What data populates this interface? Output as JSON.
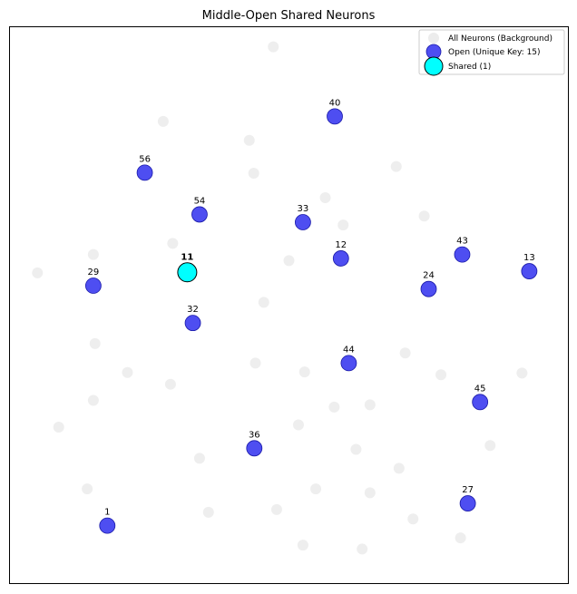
{
  "chart_data": {
    "type": "scatter",
    "title": "Middle-Open Shared Neurons",
    "xlabel": "",
    "ylabel": "",
    "xlim": [
      0,
      100
    ],
    "ylim": [
      0,
      100
    ],
    "grid": false,
    "axis_ticks": false,
    "legend_position": "top-right",
    "legend": [
      {
        "label": "All Neurons (Background)",
        "series": "background"
      },
      {
        "label": "Open (Unique Key: 15)",
        "series": "open"
      },
      {
        "label": "Shared (1)",
        "series": "shared"
      }
    ],
    "series": [
      {
        "name": "All Neurons (Background)",
        "id": "background",
        "color": "#d9d9d9",
        "points": [
          [
            47.2,
            96.4
          ],
          [
            27.5,
            83.0
          ],
          [
            42.9,
            79.6
          ],
          [
            43.7,
            73.7
          ],
          [
            69.2,
            74.9
          ],
          [
            56.5,
            69.3
          ],
          [
            59.7,
            64.4
          ],
          [
            74.2,
            66.0
          ],
          [
            29.2,
            61.1
          ],
          [
            15.0,
            59.1
          ],
          [
            50.0,
            58.0
          ],
          [
            5.0,
            55.8
          ],
          [
            45.5,
            50.5
          ],
          [
            15.3,
            43.1
          ],
          [
            44.0,
            39.6
          ],
          [
            21.1,
            37.9
          ],
          [
            28.8,
            35.8
          ],
          [
            52.8,
            38.0
          ],
          [
            70.8,
            41.4
          ],
          [
            77.2,
            37.5
          ],
          [
            91.7,
            37.8
          ],
          [
            15.0,
            32.9
          ],
          [
            58.1,
            31.7
          ],
          [
            64.5,
            32.1
          ],
          [
            51.7,
            28.5
          ],
          [
            8.8,
            28.1
          ],
          [
            34.0,
            22.5
          ],
          [
            62.0,
            24.1
          ],
          [
            86.0,
            24.8
          ],
          [
            69.7,
            20.7
          ],
          [
            13.9,
            17.0
          ],
          [
            54.8,
            17.0
          ],
          [
            64.5,
            16.3
          ],
          [
            47.8,
            13.3
          ],
          [
            35.6,
            12.8
          ],
          [
            72.2,
            11.6
          ],
          [
            52.5,
            6.9
          ],
          [
            63.1,
            6.2
          ],
          [
            80.7,
            8.2
          ]
        ]
      },
      {
        "name": "Open (Unique Key: 15)",
        "id": "open",
        "color": "#2222ee",
        "points": [
          {
            "label": "40",
            "x": 58.2,
            "y": 83.9
          },
          {
            "label": "56",
            "x": 24.2,
            "y": 73.8
          },
          {
            "label": "54",
            "x": 34.0,
            "y": 66.3
          },
          {
            "label": "33",
            "x": 52.5,
            "y": 64.9
          },
          {
            "label": "12",
            "x": 59.3,
            "y": 58.4
          },
          {
            "label": "43",
            "x": 81.0,
            "y": 59.1
          },
          {
            "label": "13",
            "x": 93.0,
            "y": 56.1
          },
          {
            "label": "29",
            "x": 15.0,
            "y": 53.5
          },
          {
            "label": "24",
            "x": 75.0,
            "y": 52.9
          },
          {
            "label": "32",
            "x": 32.8,
            "y": 46.8
          },
          {
            "label": "44",
            "x": 60.7,
            "y": 39.6
          },
          {
            "label": "45",
            "x": 84.2,
            "y": 32.6
          },
          {
            "label": "36",
            "x": 43.8,
            "y": 24.3
          },
          {
            "label": "27",
            "x": 82.0,
            "y": 14.4
          },
          {
            "label": "1",
            "x": 17.5,
            "y": 10.4
          }
        ]
      },
      {
        "name": "Shared (1)",
        "id": "shared",
        "color": "#00ffff",
        "points": [
          {
            "label": "11",
            "x": 31.8,
            "y": 55.9
          }
        ]
      }
    ]
  }
}
